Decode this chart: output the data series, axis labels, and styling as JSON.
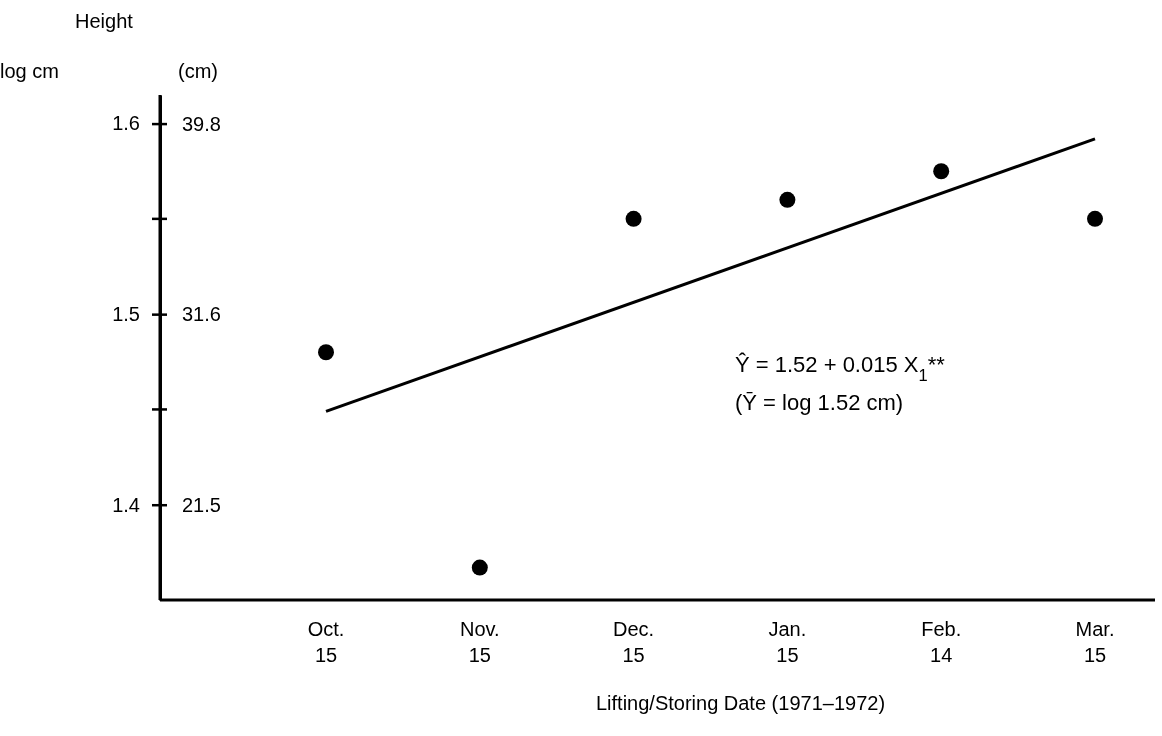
{
  "chart_data": {
    "type": "scatter",
    "title": "Height",
    "ylabel": "log cm",
    "y2label": "(cm)",
    "xlabel": "Lifting/Storing Date (1971–1972)",
    "categories": [
      "Oct.\n15",
      "Nov.\n15",
      "Dec.\n15",
      "Jan.\n15",
      "Feb.\n14",
      "Mar.\n15"
    ],
    "series": [
      {
        "color": "#000000",
        "values": [
          1.48,
          1.367,
          1.55,
          1.56,
          1.575,
          1.55
        ]
      },
      {
        "type": "line",
        "marker": "none",
        "color": "#000000",
        "values": [
          1.449,
          null,
          null,
          null,
          null,
          1.592
        ]
      }
    ],
    "ylim": [
      1.35,
      1.615
    ],
    "yticks": [
      1.4,
      {
        "value": 1.45,
        "label": null
      },
      1.5,
      {
        "value": 1.55,
        "label": null
      },
      1.6
    ],
    "annotations": [
      "39.8",
      "31.6",
      "21.5",
      "Ŷ = 1.52 + 0.015 X$_{1}$**",
      "(Ȳ = log 1.52 cm)"
    ],
    "marker": "circle",
    "line_style": "solid",
    "grid": false
  }
}
